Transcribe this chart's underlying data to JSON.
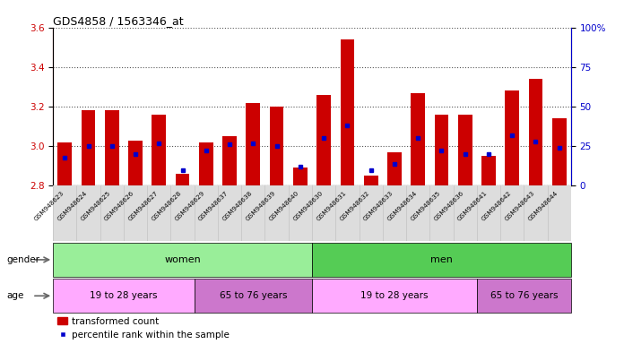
{
  "title": "GDS4858 / 1563346_at",
  "samples": [
    "GSM948623",
    "GSM948624",
    "GSM948625",
    "GSM948626",
    "GSM948627",
    "GSM948628",
    "GSM948629",
    "GSM948637",
    "GSM948638",
    "GSM948639",
    "GSM948640",
    "GSM948630",
    "GSM948631",
    "GSM948632",
    "GSM948633",
    "GSM948634",
    "GSM948635",
    "GSM948636",
    "GSM948641",
    "GSM948642",
    "GSM948643",
    "GSM948644"
  ],
  "transformed_count": [
    3.02,
    3.18,
    3.18,
    3.03,
    3.16,
    2.86,
    3.02,
    3.05,
    3.22,
    3.2,
    2.89,
    3.26,
    3.54,
    2.85,
    2.97,
    3.27,
    3.16,
    3.16,
    2.95,
    3.28,
    3.34,
    3.14
  ],
  "percentile_rank": [
    18,
    25,
    25,
    20,
    27,
    10,
    22,
    26,
    27,
    25,
    12,
    30,
    38,
    10,
    14,
    30,
    22,
    20,
    20,
    32,
    28,
    24
  ],
  "ylim_left": [
    2.8,
    3.6
  ],
  "ylim_right": [
    0,
    100
  ],
  "yticks_left": [
    2.8,
    3.0,
    3.2,
    3.4,
    3.6
  ],
  "yticks_right": [
    0,
    25,
    50,
    75,
    100
  ],
  "bar_color": "#cc0000",
  "blue_color": "#0000cc",
  "bar_width": 0.6,
  "gender_groups": [
    {
      "label": "women",
      "start": 0,
      "end": 11,
      "color": "#99ee99"
    },
    {
      "label": "men",
      "start": 11,
      "end": 22,
      "color": "#55cc55"
    }
  ],
  "age_groups": [
    {
      "label": "19 to 28 years",
      "start": 0,
      "end": 6,
      "color": "#ffaaff"
    },
    {
      "label": "65 to 76 years",
      "start": 6,
      "end": 11,
      "color": "#cc77cc"
    },
    {
      "label": "19 to 28 years",
      "start": 11,
      "end": 18,
      "color": "#ffaaff"
    },
    {
      "label": "65 to 76 years",
      "start": 18,
      "end": 22,
      "color": "#cc77cc"
    }
  ],
  "dotted_line_color": "#555555",
  "left_axis_color": "#cc0000",
  "right_axis_color": "#0000cc",
  "bg_color": "#ffffff",
  "plot_bg_color": "#ffffff",
  "xlabel_bg_color": "#dddddd",
  "legend_items": [
    "transformed count",
    "percentile rank within the sample"
  ]
}
